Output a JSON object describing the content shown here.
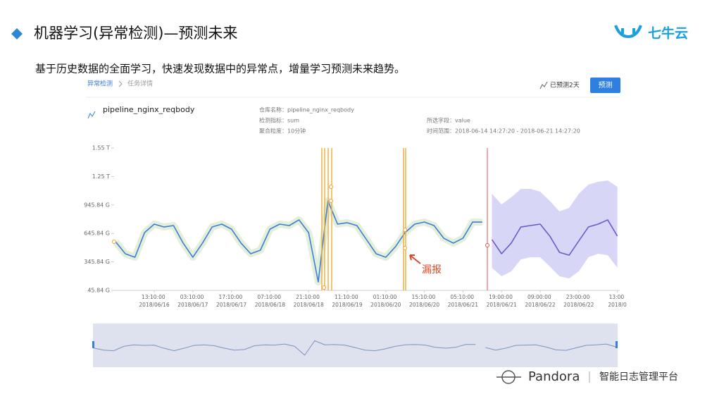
{
  "slide": {
    "title": "机器学习(异常检测)—预测未来",
    "subtitle": "基于历史数据的全面学习，快速发现数据中的异常点，增量学习预测未来趋势。",
    "logo": "七牛云"
  },
  "ui": {
    "breadcrumb": [
      "异常检测",
      "任务详情"
    ],
    "status": "已预测2天",
    "button": "预测",
    "chart_name": "pipeline_nginx_reqbody",
    "meta_left": [
      "仓库名称：pipeline_nginx_reqbody",
      "检测指标：sum",
      "聚合粒度：10分钟"
    ],
    "meta_right": [
      "所选字段：value",
      "时间范围：2018-06-14 14:27:20 - 2018-06-21 14:27:20"
    ]
  },
  "footer": {
    "brand": "Pandora",
    "product": "智能日志管理平台"
  },
  "chart_data": {
    "type": "line",
    "categories": [
      null,
      null,
      null,
      null,
      "13:10:00 2018/06/16",
      null,
      null,
      null,
      "03:10:00 2018/06/17",
      null,
      null,
      null,
      "17:10:00 2018/06/17",
      null,
      null,
      null,
      "07:10:00 2018/06/18",
      null,
      null,
      null,
      "21:10:00 2018/06/18",
      null,
      null,
      null,
      "11:10:00 2018/06/19",
      null,
      null,
      null,
      "01:10:00 2018/06/20",
      null,
      null,
      null,
      "15:10:00 2018/06/20",
      null,
      null,
      null,
      "05:10:00 2018/06/21",
      null,
      null,
      null,
      "19:00:00 2018/06/21",
      null,
      null,
      null,
      "09:00:00 2018/06/22",
      null,
      null,
      null,
      "23:00:00 2018/06/22",
      null,
      null,
      null,
      "13:00 2018/0"
    ],
    "series": [
      {
        "color": "#3b7ddd",
        "values": [
          558,
          432,
          395,
          655,
          744,
          714,
          729,
          544,
          395,
          544,
          714,
          744,
          692,
          544,
          432,
          469,
          692,
          744,
          729,
          789,
          655,
          135,
          989,
          744,
          759,
          729,
          581,
          432,
          395,
          506,
          655,
          744,
          766,
          729,
          596,
          544,
          596,
          766,
          766,
          null,
          null,
          null,
          null,
          null,
          null,
          null,
          null,
          null,
          null,
          null,
          null,
          null,
          null
        ]
      },
      {
        "color": "#6a5cc8",
        "values": [
          null,
          null,
          null,
          null,
          null,
          null,
          null,
          null,
          null,
          null,
          null,
          null,
          null,
          null,
          null,
          null,
          null,
          null,
          null,
          null,
          null,
          null,
          null,
          null,
          null,
          null,
          null,
          null,
          null,
          null,
          null,
          null,
          null,
          null,
          null,
          null,
          null,
          null,
          null,
          581,
          432,
          544,
          714,
          729,
          744,
          618,
          447,
          417,
          566,
          714,
          744,
          789,
          618
        ]
      }
    ],
    "confidence_band": {
      "color": "#c8c4f4",
      "upper": [
        null,
        null,
        null,
        null,
        null,
        null,
        null,
        null,
        null,
        null,
        null,
        null,
        null,
        null,
        null,
        null,
        null,
        null,
        null,
        null,
        null,
        null,
        null,
        null,
        null,
        null,
        null,
        null,
        null,
        null,
        null,
        null,
        null,
        null,
        null,
        null,
        null,
        null,
        null,
        1063,
        952,
        1026,
        1115,
        1115,
        1086,
        989,
        878,
        915,
        1063,
        1160,
        1190,
        1204,
        1137
      ],
      "lower": [
        null,
        null,
        null,
        null,
        null,
        null,
        null,
        null,
        null,
        null,
        null,
        null,
        null,
        null,
        null,
        null,
        null,
        null,
        null,
        null,
        null,
        null,
        null,
        null,
        null,
        null,
        null,
        null,
        null,
        null,
        null,
        null,
        null,
        null,
        null,
        null,
        null,
        null,
        null,
        284,
        194,
        246,
        373,
        395,
        395,
        298,
        194,
        172,
        246,
        395,
        432,
        417,
        284
      ]
    },
    "ylim": [
      45.84,
      1545.84
    ],
    "yticks": [
      {
        "value": 45.84,
        "label": "45.84 G"
      },
      {
        "value": 345.84,
        "label": "345.84 G"
      },
      {
        "value": 645.84,
        "label": "645.84 G"
      },
      {
        "value": 945.84,
        "label": "945.84 G"
      },
      {
        "value": 1245.84,
        "label": "1.25 T"
      },
      {
        "value": 1545.84,
        "label": "1.55 T"
      }
    ],
    "annotation": "漏报"
  }
}
